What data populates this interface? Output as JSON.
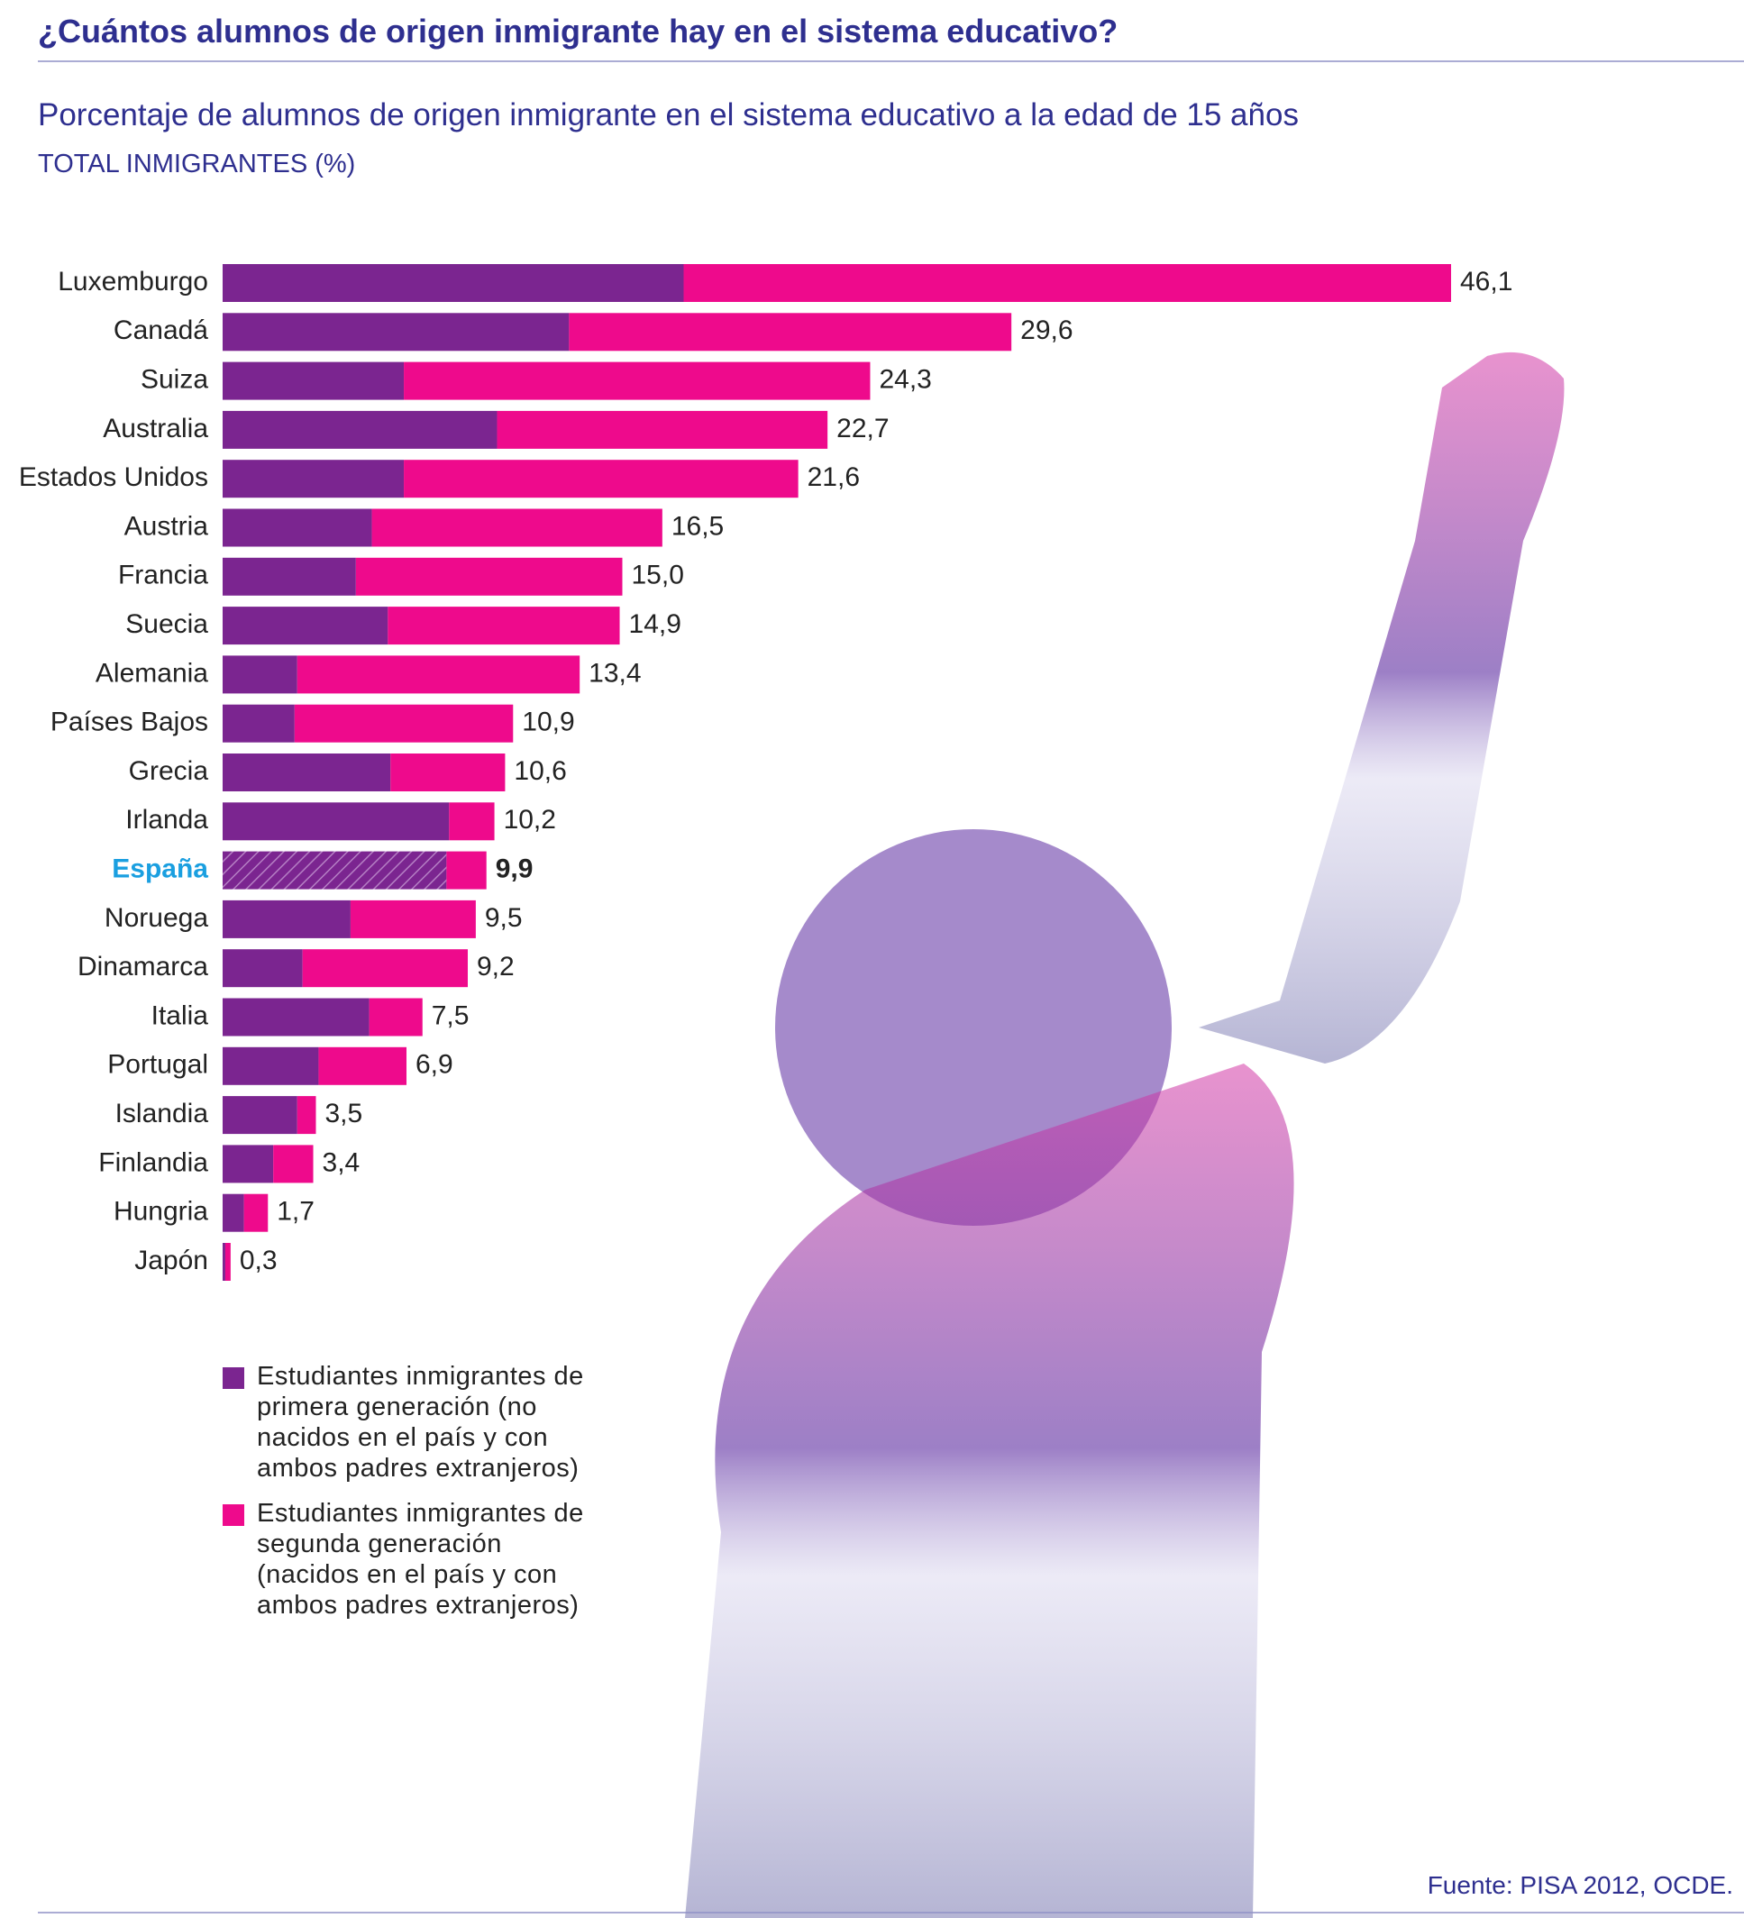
{
  "chart_data": {
    "type": "stacked-barh",
    "title": "¿Cuántos alumnos de origen inmigrante hay en el sistema educativo?",
    "subtitle": "Porcentaje de alumnos de origen inmigrante en el sistema educativo a la edad de 15 años",
    "axis_label": "TOTAL INMIGRANTES (%)",
    "source": "Fuente: PISA 2012, OCDE.",
    "highlight": "España",
    "categories": [
      "Luxemburgo",
      "Canadá",
      "Suiza",
      "Australia",
      "Estados Unidos",
      "Austria",
      "Francia",
      "Suecia",
      "Alemania",
      "Países Bajos",
      "Grecia",
      "Irlanda",
      "España",
      "Noruega",
      "Dinamarca",
      "Italia",
      "Portugal",
      "Islandia",
      "Finlandia",
      "Hungria",
      "Japón"
    ],
    "series": [
      {
        "name": "Estudiantes inmigrantes de primera generación (no nacidos en el país y con ambos padres extranjeros)",
        "color": "#7b2590",
        "values": [
          17.3,
          13.0,
          6.8,
          10.3,
          6.8,
          5.6,
          5.0,
          6.2,
          2.8,
          2.7,
          6.3,
          8.5,
          8.4,
          4.8,
          3.0,
          5.5,
          3.6,
          2.8,
          1.9,
          0.8,
          0.1
        ]
      },
      {
        "name": "Estudiantes inmigrantes de segunda generación (nacidos en el país y con ambos padres extranjeros)",
        "color": "#ee0a8c",
        "values": [
          28.8,
          16.6,
          17.5,
          12.4,
          14.8,
          10.9,
          10.0,
          8.7,
          10.6,
          8.2,
          4.3,
          1.7,
          1.5,
          4.7,
          6.2,
          2.0,
          3.3,
          0.7,
          1.5,
          0.9,
          0.2
        ]
      }
    ],
    "totals": {
      "values": [
        46.1,
        29.6,
        24.3,
        22.7,
        21.6,
        16.5,
        15.0,
        14.9,
        13.4,
        10.9,
        10.6,
        10.2,
        9.9,
        9.5,
        9.2,
        7.5,
        6.9,
        3.5,
        3.4,
        1.7,
        0.3
      ],
      "value_labels": [
        "46,1",
        "29,6",
        "24,3",
        "22,7",
        "21,6",
        "16,5",
        "15,0",
        "14,9",
        "13,4",
        "10,9",
        "10,6",
        "10,2",
        "9,9",
        "9,5",
        "9,2",
        "7,5",
        "6,9",
        "3,5",
        "3,4",
        "1,7",
        "0,3"
      ]
    }
  }
}
